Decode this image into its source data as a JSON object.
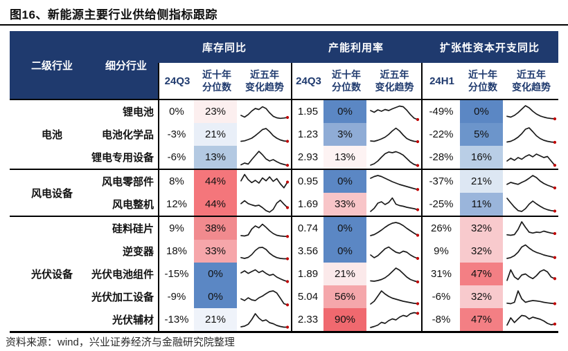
{
  "title": "图16、新能源主要行业供给侧指标跟踪",
  "source_note": "资料来源：wind，兴业证券经济与金融研究院整理",
  "colors": {
    "header_bg": "#1F3A6E",
    "header_text": "#FFFFFF",
    "subheader_text": "#1F3A6E",
    "divider": "#000000",
    "spark_line": "#1A1A1A",
    "spark_dot": "#C00000"
  },
  "header": {
    "col_industry": "二级行业",
    "col_subindustry": "细分行业",
    "groups": [
      {
        "title": "库存同比",
        "period": "24Q3",
        "pct_line1": "近十年",
        "pct_line2": "分位数",
        "trend_line1": "近五年",
        "trend_line2": "变化趋势"
      },
      {
        "title": "产能利用率",
        "period": "24Q3",
        "pct_line1": "近十年",
        "pct_line2": "分位数",
        "trend_line1": "近五年",
        "trend_line2": "变化趋势"
      },
      {
        "title": "扩张性资本开支同比",
        "period": "24H1",
        "pct_line1": "近十年",
        "pct_line2": "分位数",
        "trend_line1": "近五年",
        "trend_line2": "变化趋势"
      }
    ]
  },
  "chart_data": {
    "type": "table",
    "metric_groups": [
      "库存同比",
      "产能利用率",
      "扩张性资本开支同比"
    ],
    "sparkline_note": "black 5-year trend line with red dot at latest value",
    "industries": [
      {
        "industry": "电池",
        "rows": [
          {
            "name": "锂电池",
            "cells": [
              {
                "value": "0%",
                "pct": "23%",
                "pct_color": "#FCEFEF",
                "trend": [
                  0.3,
                  0.2,
                  0.35,
                  0.55,
                  0.7,
                  0.64,
                  0.8,
                  0.7,
                  0.45,
                  0.25,
                  0.16,
                  0.13,
                  0.15,
                  0.18
                ]
              },
              {
                "value": "1.95",
                "pct": "0%",
                "pct_color": "#5B87C4",
                "trend": [
                  0.58,
                  0.48,
                  0.62,
                  0.54,
                  0.64,
                  0.58,
                  0.68,
                  0.76,
                  0.84,
                  0.8,
                  0.6,
                  0.35,
                  0.14,
                  0.06
                ]
              },
              {
                "value": "-49%",
                "pct": "0%",
                "pct_color": "#5B87C4",
                "trend": [
                  0.25,
                  0.2,
                  0.3,
                  0.46,
                  0.66,
                  0.86,
                  0.74,
                  0.54,
                  0.38,
                  0.27,
                  0.2,
                  0.15,
                  0.12,
                  0.1
                ]
              }
            ]
          },
          {
            "name": "电池化学品",
            "cells": [
              {
                "value": "-3%",
                "pct": "21%",
                "pct_color": "#E9EFF8",
                "trend": [
                  0.12,
                  0.15,
                  0.22,
                  0.3,
                  0.45,
                  0.62,
                  0.8,
                  0.86,
                  0.68,
                  0.45,
                  0.3,
                  0.2,
                  0.14,
                  0.12
                ]
              },
              {
                "value": "1.23",
                "pct": "3%",
                "pct_color": "#8FACD6",
                "trend": [
                  0.14,
                  0.12,
                  0.18,
                  0.26,
                  0.36,
                  0.52,
                  0.72,
                  0.88,
                  0.72,
                  0.48,
                  0.28,
                  0.18,
                  0.12,
                  0.1
                ]
              },
              {
                "value": "-22%",
                "pct": "5%",
                "pct_color": "#6C95CB",
                "trend": [
                  0.08,
                  0.12,
                  0.22,
                  0.36,
                  0.56,
                  0.82,
                  0.9,
                  0.68,
                  0.44,
                  0.28,
                  0.18,
                  0.12,
                  0.08,
                  0.06
                ]
              }
            ]
          },
          {
            "name": "锂电专用设备",
            "cells": [
              {
                "value": "-6%",
                "pct": "13%",
                "pct_color": "#B3C9E2",
                "trend": [
                  0.08,
                  0.18,
                  0.12,
                  0.38,
                  0.62,
                  0.86,
                  0.66,
                  0.42,
                  0.3,
                  0.38,
                  0.26,
                  0.16,
                  0.1,
                  0.05
                ]
              },
              {
                "value": "2.93",
                "pct": "13%",
                "pct_color": "#FDF3F3",
                "trend": [
                  0.06,
                  0.14,
                  0.3,
                  0.52,
                  0.72,
                  0.82,
                  0.78,
                  0.84,
                  0.76,
                  0.64,
                  0.44,
                  0.24,
                  0.1,
                  0.04
                ]
              },
              {
                "value": "-28%",
                "pct": "16%",
                "pct_color": "#B9CEE6",
                "trend": [
                  0.3,
                  0.46,
                  0.34,
                  0.5,
                  0.4,
                  0.56,
                  0.66,
                  0.54,
                  0.7,
                  0.6,
                  0.5,
                  0.56,
                  0.3,
                  0.05
                ]
              }
            ]
          }
        ]
      },
      {
        "industry": "风电设备",
        "rows": [
          {
            "name": "风电零部件",
            "cells": [
              {
                "value": "8%",
                "pct": "44%",
                "pct_color": "#F4767B",
                "trend": [
                  0.55,
                  0.92,
                  0.62,
                  0.45,
                  0.58,
                  0.42,
                  0.72,
                  0.55,
                  0.78,
                  0.52,
                  0.68,
                  0.38,
                  0.15,
                  0.48
                ]
              },
              {
                "value": "0.95",
                "pct": "0%",
                "pct_color": "#5B87C4",
                "trend": [
                  0.7,
                  0.8,
                  0.86,
                  0.8,
                  0.7,
                  0.6,
                  0.5,
                  0.42,
                  0.34,
                  0.28,
                  0.22,
                  0.16,
                  0.1,
                  0.05
                ]
              },
              {
                "value": "-37%",
                "pct": "21%",
                "pct_color": "#DDE7F3",
                "trend": [
                  0.35,
                  0.46,
                  0.4,
                  0.35,
                  0.46,
                  0.56,
                  0.7,
                  0.86,
                  0.74,
                  0.54,
                  0.4,
                  0.3,
                  0.22,
                  0.14
                ]
              }
            ]
          },
          {
            "name": "风电整机",
            "cells": [
              {
                "value": "12%",
                "pct": "44%",
                "pct_color": "#F4767B",
                "trend": [
                  0.55,
                  0.72,
                  0.55,
                  0.48,
                  0.42,
                  0.46,
                  0.32,
                  0.15,
                  0.06,
                  0.22,
                  0.58,
                  0.75,
                  0.52,
                  0.32
                ]
              },
              {
                "value": "1.69",
                "pct": "33%",
                "pct_color": "#F8C5C8",
                "trend": [
                  0.1,
                  0.28,
                  0.58,
                  0.66,
                  0.5,
                  0.62,
                  0.88,
                  0.52,
                  0.44,
                  0.4,
                  0.34,
                  0.3,
                  0.26,
                  0.2
                ]
              },
              {
                "value": "-25%",
                "pct": "11%",
                "pct_color": "#9AB5DB",
                "trend": [
                  0.86,
                  0.6,
                  0.35,
                  0.15,
                  0.1,
                  0.26,
                  0.52,
                  0.7,
                  0.54,
                  0.4,
                  0.28,
                  0.2,
                  0.15,
                  0.12
                ]
              }
            ]
          }
        ]
      },
      {
        "industry": "光伏设备",
        "rows": [
          {
            "name": "硅料硅片",
            "cells": [
              {
                "value": "9%",
                "pct": "38%",
                "pct_color": "#F18A8E",
                "trend": [
                  0.1,
                  0.08,
                  0.14,
                  0.48,
                  0.66,
                  0.55,
                  0.76,
                  0.58,
                  0.38,
                  0.22,
                  0.12,
                  0.08,
                  0.06,
                  0.05
                ]
              },
              {
                "value": "0.74",
                "pct": "0%",
                "pct_color": "#5B87C4",
                "trend": [
                  0.1,
                  0.16,
                  0.28,
                  0.42,
                  0.58,
                  0.72,
                  0.82,
                  0.86,
                  0.8,
                  0.68,
                  0.52,
                  0.38,
                  0.24,
                  0.12
                ]
              },
              {
                "value": "26%",
                "pct": "32%",
                "pct_color": "#F8CACD",
                "trend": [
                  0.15,
                  0.12,
                  0.16,
                  0.46,
                  0.9,
                  0.58,
                  0.3,
                  0.25,
                  0.3,
                  0.28,
                  0.36,
                  0.3,
                  0.25,
                  0.22
                ]
              }
            ]
          },
          {
            "name": "逆变器",
            "cells": [
              {
                "value": "18%",
                "pct": "33%",
                "pct_color": "#F6A6AA",
                "trend": [
                  0.15,
                  0.1,
                  0.16,
                  0.32,
                  0.56,
                  0.72,
                  0.74,
                  0.62,
                  0.4,
                  0.25,
                  0.15,
                  0.1,
                  0.08,
                  0.08
                ]
              },
              {
                "value": "3.56",
                "pct": "0%",
                "pct_color": "#5B87C4",
                "trend": [
                  0.3,
                  0.14,
                  0.26,
                  0.46,
                  0.66,
                  0.76,
                  0.6,
                  0.46,
                  0.4,
                  0.52,
                  0.46,
                  0.3,
                  0.18,
                  0.1
                ]
              },
              {
                "value": "9%",
                "pct": "32%",
                "pct_color": "#F8CACD",
                "trend": [
                  0.1,
                  0.15,
                  0.26,
                  0.46,
                  0.76,
                  0.88,
                  0.7,
                  0.55,
                  0.45,
                  0.38,
                  0.3,
                  0.25,
                  0.2,
                  0.15
                ]
              }
            ]
          },
          {
            "name": "光伏电池组件",
            "cells": [
              {
                "value": "-15%",
                "pct": "0%",
                "pct_color": "#5B87C4",
                "trend": [
                  0.58,
                  0.7,
                  0.55,
                  0.66,
                  0.76,
                  0.6,
                  0.7,
                  0.55,
                  0.44,
                  0.5,
                  0.34,
                  0.24,
                  0.15,
                  0.08
                ]
              },
              {
                "value": "1.89",
                "pct": "21%",
                "pct_color": "#FBE9EA",
                "trend": [
                  0.12,
                  0.1,
                  0.14,
                  0.2,
                  0.3,
                  0.46,
                  0.66,
                  0.86,
                  0.74,
                  0.54,
                  0.34,
                  0.2,
                  0.12,
                  0.06
                ]
              },
              {
                "value": "31%",
                "pct": "47%",
                "pct_color": "#F37F84",
                "trend": [
                  0.15,
                  0.76,
                  0.35,
                  0.2,
                  0.46,
                  0.52,
                  0.36,
                  0.25,
                  0.42,
                  0.66,
                  0.76,
                  0.64,
                  0.34,
                  0.25
                ]
              }
            ]
          },
          {
            "name": "光伏加工设备",
            "cells": [
              {
                "value": "-9%",
                "pct": "0%",
                "pct_color": "#5B87C4",
                "trend": [
                  0.4,
                  0.3,
                  0.46,
                  0.34,
                  0.3,
                  0.46,
                  0.56,
                  0.7,
                  0.82,
                  0.86,
                  0.74,
                  0.44,
                  0.12,
                  0.05
                ]
              },
              {
                "value": "5.04",
                "pct": "56%",
                "pct_color": "#F5A7AB",
                "trend": [
                  0.1,
                  0.26,
                  0.56,
                  0.86,
                  0.68,
                  0.54,
                  0.44,
                  0.38,
                  0.32,
                  0.26,
                  0.22,
                  0.18,
                  0.14,
                  0.12
                ]
              },
              {
                "value": "-6%",
                "pct": "32%",
                "pct_color": "#F8CACD",
                "trend": [
                  0.15,
                  0.12,
                  0.2,
                  0.86,
                  0.4,
                  0.2,
                  0.26,
                  0.3,
                  0.28,
                  0.25,
                  0.2,
                  0.17,
                  0.14,
                  0.12
                ]
              }
            ]
          },
          {
            "name": "光伏辅材",
            "cells": [
              {
                "value": "-13%",
                "pct": "21%",
                "pct_color": "#EFF3FA",
                "trend": [
                  0.1,
                  0.14,
                  0.25,
                  0.52,
                  0.86,
                  0.6,
                  0.44,
                  0.5,
                  0.34,
                  0.28,
                  0.18,
                  0.12,
                  0.08,
                  0.08
                ]
              },
              {
                "value": "2.33",
                "pct": "90%",
                "pct_color": "#F0696F",
                "trend": [
                  0.06,
                  0.12,
                  0.2,
                  0.36,
                  0.3,
                  0.46,
                  0.56,
                  0.5,
                  0.66,
                  0.76,
                  0.7,
                  0.86,
                  0.92,
                  0.88
                ]
              },
              {
                "value": "-8%",
                "pct": "47%",
                "pct_color": "#F37F84",
                "trend": [
                  0.2,
                  0.62,
                  0.35,
                  0.56,
                  0.76,
                  0.72,
                  0.55,
                  0.66,
                  0.6,
                  0.54,
                  0.44,
                  0.3,
                  0.22,
                  0.26
                ]
              }
            ]
          }
        ]
      }
    ]
  }
}
